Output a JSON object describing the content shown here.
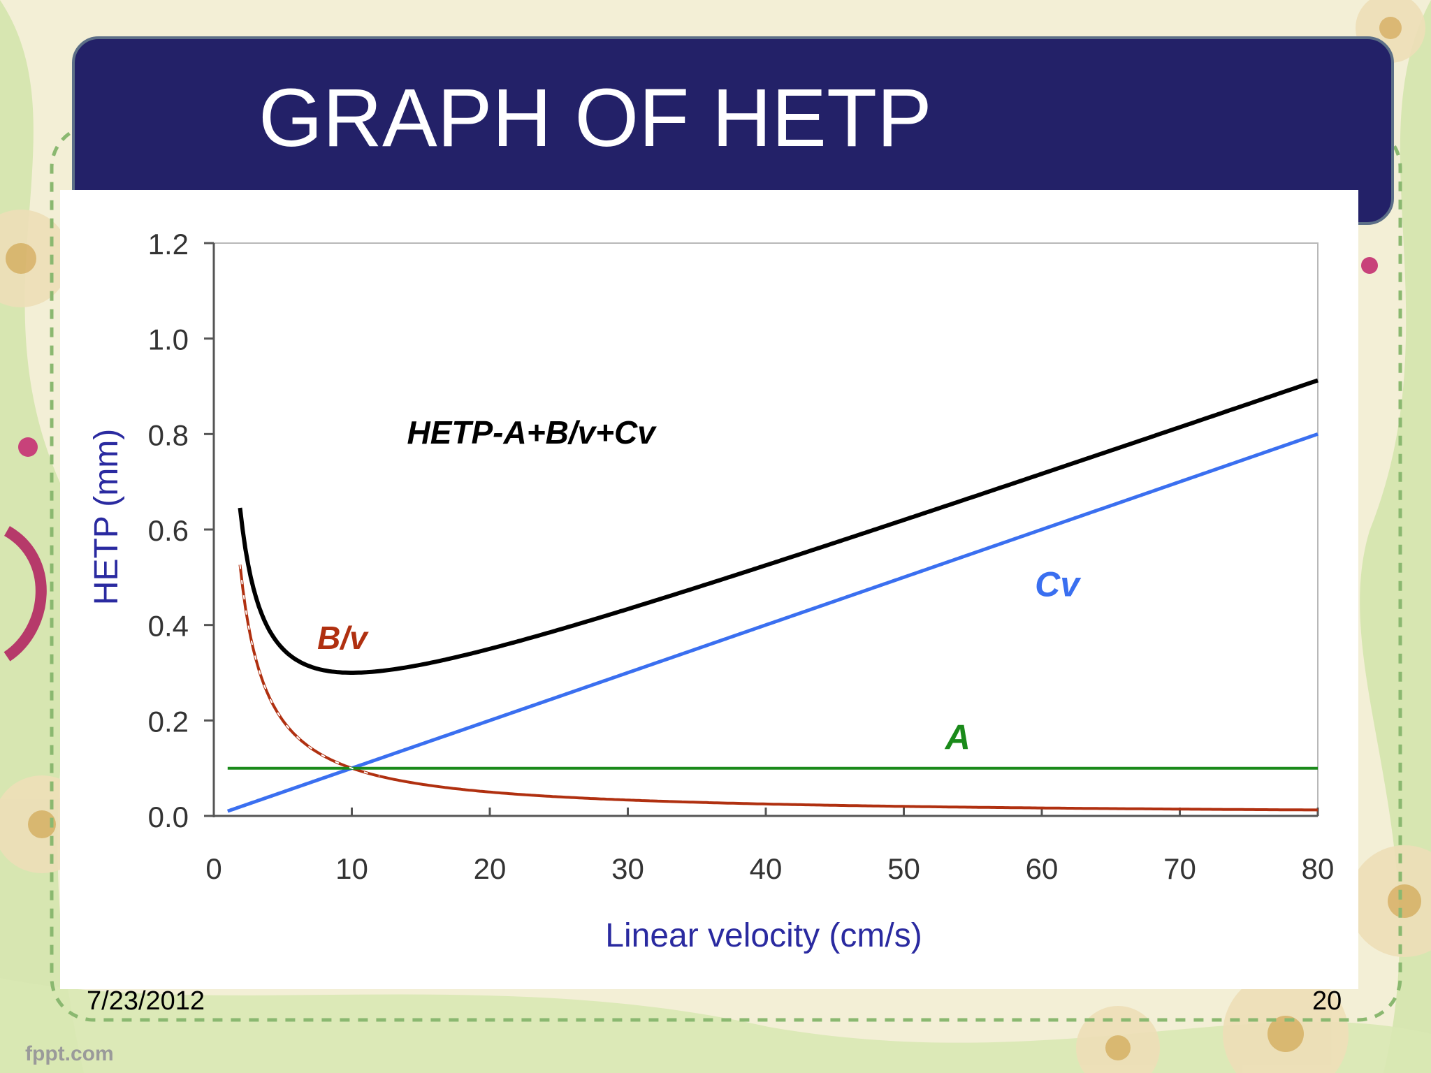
{
  "slide": {
    "title": "GRAPH OF HETP",
    "date": "7/23/2012",
    "page_number": "20",
    "brand": "fppt.com"
  },
  "colors": {
    "title_bg": "#232168",
    "total": "#000000",
    "b_term": "#b03010",
    "c_term": "#3a6ff0",
    "a_term": "#1a8a1a",
    "axis_label": "#2a2aa0"
  },
  "chart_data": {
    "type": "line",
    "xlabel": "Linear velocity (cm/s)",
    "ylabel": "HETP (mm)",
    "xlim": [
      0,
      80
    ],
    "ylim": [
      0,
      1.2
    ],
    "x_ticks": [
      0,
      10,
      20,
      30,
      40,
      50,
      60,
      70,
      80
    ],
    "y_ticks": [
      "0.0",
      "0.2",
      "0.4",
      "0.6",
      "0.8",
      "1.0",
      "1.2"
    ],
    "grid": false,
    "params": {
      "A": 0.1,
      "B": 1.0,
      "C": 0.01
    },
    "series": [
      {
        "name": "HETP-A+B/v+Cv",
        "x_range": [
          1.9,
          80
        ]
      },
      {
        "name": "B/v",
        "x_range": [
          1.9,
          80
        ]
      },
      {
        "name": "Cv",
        "x_range": [
          1,
          80
        ]
      },
      {
        "name": "A",
        "x_range": [
          1,
          80
        ]
      }
    ],
    "annotations": [
      {
        "text": "HETP-A+B/v+Cv",
        "x": 14,
        "y": 0.78
      },
      {
        "text": "B/v",
        "x": 7.5,
        "y": 0.35
      },
      {
        "text": "Cv",
        "x": 59.5,
        "y": 0.46
      },
      {
        "text": "A",
        "x": 53,
        "y": 0.14
      }
    ]
  }
}
